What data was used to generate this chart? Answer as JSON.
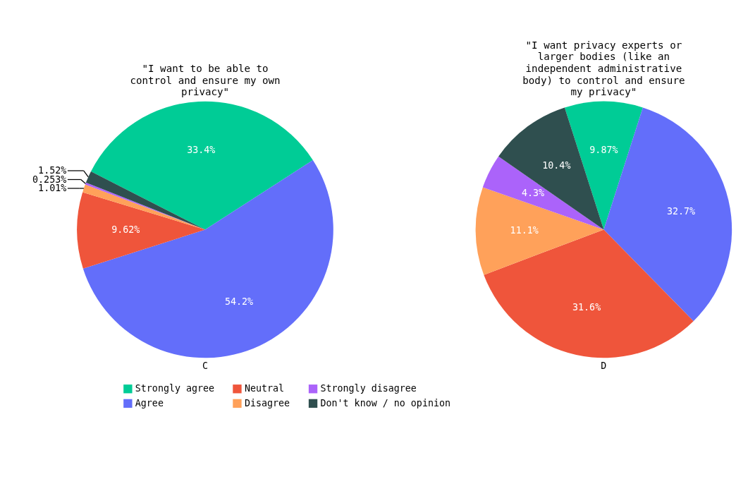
{
  "chart_data": [
    {
      "type": "pie",
      "title": "\"I want to be able to control and ensure my own privacy\"",
      "xlabel": "C",
      "categories": [
        "Strongly agree",
        "Agree",
        "Neutral",
        "Disagree",
        "Strongly disagree",
        "Don't know / no opinion"
      ],
      "values": [
        33.4,
        54.2,
        9.62,
        1.01,
        0.253,
        1.52
      ],
      "value_labels": [
        "33.4%",
        "54.2%",
        "9.62%",
        "1.01%",
        "0.253%",
        "1.52%"
      ],
      "colors": [
        "#00cc96",
        "#636efa",
        "#ef553b",
        "#ffa15a",
        "#ab63fa",
        "#2f4f4f"
      ],
      "legend": "bottom"
    },
    {
      "type": "pie",
      "title": "\"I want privacy experts or larger bodies (like an independent administrative body) to control and ensure my privacy\"",
      "xlabel": "D",
      "values": [
        9.87,
        32.7,
        31.6,
        11.1,
        4.3,
        10.4
      ],
      "value_labels": [
        "9.87%",
        "32.7%",
        "31.6%",
        "11.1%",
        "4.3%",
        "10.4%"
      ],
      "colors": [
        "#00cc96",
        "#636efa",
        "#ef553b",
        "#ffa15a",
        "#ab63fa",
        "#2f4f4f"
      ]
    }
  ]
}
